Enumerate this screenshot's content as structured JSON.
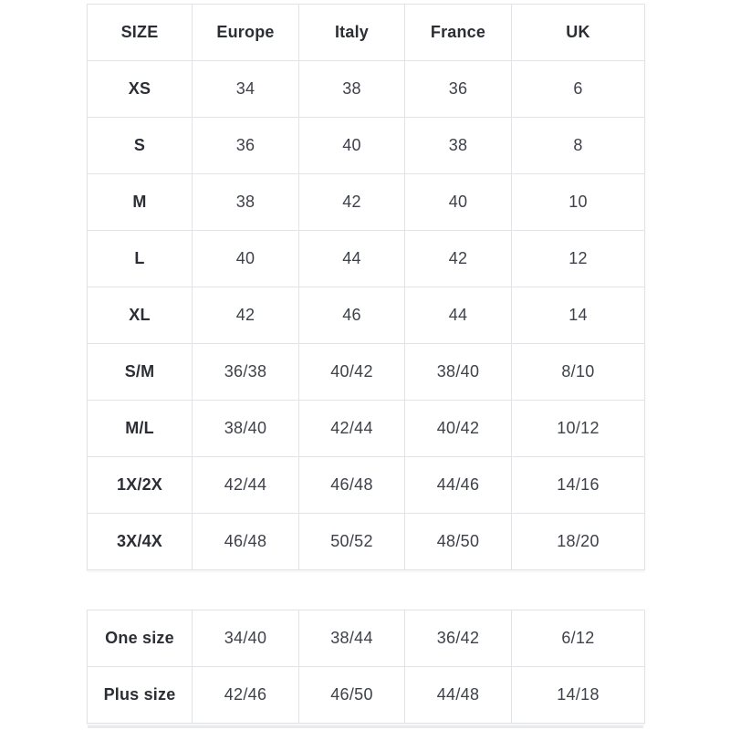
{
  "colors": {
    "border": "#e2e3e6",
    "header_text": "#2c2e36",
    "cell_text": "#3e414a",
    "page_background": "#ffffff"
  },
  "size_chart": {
    "headers": [
      "SIZE",
      "Europe",
      "Italy",
      "France",
      "UK"
    ],
    "rows": [
      [
        "XS",
        "34",
        "38",
        "36",
        "6"
      ],
      [
        "S",
        "36",
        "40",
        "38",
        "8"
      ],
      [
        "M",
        "38",
        "42",
        "40",
        "10"
      ],
      [
        "L",
        "40",
        "44",
        "42",
        "12"
      ],
      [
        "XL",
        "42",
        "46",
        "44",
        "14"
      ],
      [
        "S/M",
        "36/38",
        "40/42",
        "38/40",
        "8/10"
      ],
      [
        "M/L",
        "38/40",
        "42/44",
        "40/42",
        "10/12"
      ],
      [
        "1X/2X",
        "42/44",
        "46/48",
        "44/46",
        "14/16"
      ],
      [
        "3X/4X",
        "46/48",
        "50/52",
        "48/50",
        "18/20"
      ]
    ]
  },
  "special_sizes": {
    "rows": [
      [
        "One size",
        "34/40",
        "38/44",
        "36/42",
        "6/12"
      ],
      [
        "Plus size",
        "42/46",
        "46/50",
        "44/48",
        "14/18"
      ]
    ]
  }
}
